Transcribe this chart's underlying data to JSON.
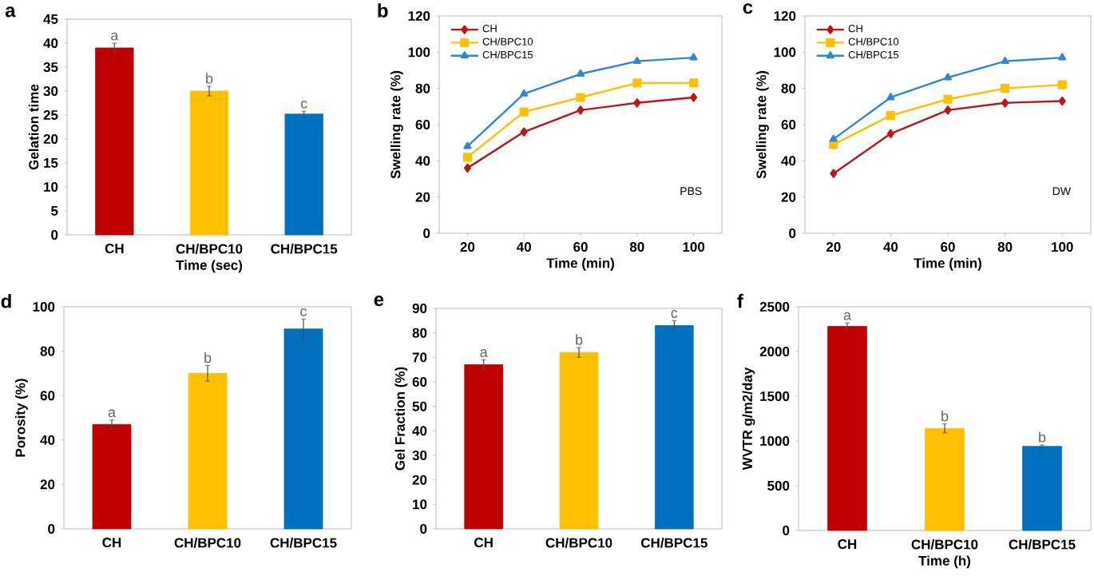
{
  "chart_data": [
    {
      "type": "bar",
      "title": "a",
      "xlabel": "Time (sec)",
      "ylabel": "Gelation time",
      "categories": [
        "CH",
        "CH/BPC10",
        "CH/BPC15"
      ],
      "values": [
        39,
        30,
        25.2
      ],
      "errors": [
        1,
        1,
        0.6
      ],
      "colors": [
        "#c00000",
        "#ffc000",
        "#0070c0"
      ],
      "ylim": [
        0,
        45
      ],
      "yticks": [
        0,
        5,
        10,
        15,
        20,
        25,
        30,
        35,
        40,
        45
      ],
      "legend": false,
      "annotations": [
        {
          "text": "a",
          "x": "CH",
          "y": 39
        },
        {
          "text": "b",
          "x": "CH/BPC10",
          "y": 30
        },
        {
          "text": "c",
          "x": "CH/BPC15",
          "y": 25.2
        }
      ]
    },
    {
      "type": "line",
      "title": "b",
      "xlabel": "Time (min)",
      "ylabel": "Swelling rate  (%)",
      "x": [
        20,
        40,
        60,
        80,
        100
      ],
      "xlim": [
        10,
        110
      ],
      "xticks": [
        20,
        40,
        60,
        80,
        100
      ],
      "ylim": [
        0,
        120
      ],
      "yticks": [
        0,
        20,
        40,
        60,
        80,
        100,
        120
      ],
      "legend": "top left",
      "line_style": "solid",
      "annotations": [
        "PBS"
      ],
      "series": [
        {
          "name": "CH",
          "color": "#c0141c",
          "marker": "diamond",
          "values": [
            36,
            56,
            68,
            72,
            75
          ]
        },
        {
          "name": "CH/BPC10",
          "color": "#ffc000",
          "marker": "square",
          "values": [
            42,
            67,
            75,
            83,
            83
          ]
        },
        {
          "name": "CH/BPC15",
          "color": "#2e86d6",
          "marker": "triangle",
          "values": [
            48,
            77,
            88,
            95,
            97
          ]
        }
      ]
    },
    {
      "type": "line",
      "title": "c",
      "xlabel": "Time (min)",
      "ylabel": "Swelling rate (%)",
      "x": [
        20,
        40,
        60,
        80,
        100
      ],
      "xlim": [
        10,
        110
      ],
      "xticks": [
        20,
        40,
        60,
        80,
        100
      ],
      "ylim": [
        0,
        120
      ],
      "yticks": [
        0,
        20,
        40,
        60,
        80,
        100,
        120
      ],
      "legend": "top left",
      "line_style": "solid",
      "annotations": [
        "DW"
      ],
      "series": [
        {
          "name": "CH",
          "color": "#c0141c",
          "marker": "diamond",
          "values": [
            33,
            55,
            68,
            72,
            73
          ]
        },
        {
          "name": "CH/BPC10",
          "color": "#ffc000",
          "marker": "square",
          "values": [
            49,
            65,
            74,
            80,
            82
          ]
        },
        {
          "name": "CH/BPC15",
          "color": "#2e86d6",
          "marker": "triangle",
          "values": [
            52,
            75,
            86,
            95,
            97
          ]
        }
      ]
    },
    {
      "type": "bar",
      "title": "d",
      "ylabel": "Porosity (%)",
      "categories": [
        "CH",
        "CH/BPC10",
        "CH/BPC15"
      ],
      "values": [
        47,
        70,
        90
      ],
      "errors": [
        2,
        3.5,
        4.5
      ],
      "colors": [
        "#c00000",
        "#ffc000",
        "#0070c0"
      ],
      "ylim": [
        0,
        100
      ],
      "yticks": [
        0,
        20,
        40,
        60,
        80,
        100
      ],
      "legend": false,
      "annotations": [
        {
          "text": "a",
          "x": "CH",
          "y": 47
        },
        {
          "text": "b",
          "x": "CH/BPC10",
          "y": 70
        },
        {
          "text": "c",
          "x": "CH/BPC15",
          "y": 90
        }
      ]
    },
    {
      "type": "bar",
      "title": "e",
      "ylabel": "Gel Fraction (%)",
      "categories": [
        "CH",
        "CH/BPC10",
        "CH/BPC15"
      ],
      "values": [
        67,
        72,
        83
      ],
      "errors": [
        2,
        2,
        2
      ],
      "colors": [
        "#c00000",
        "#ffc000",
        "#0070c0"
      ],
      "ylim": [
        0,
        90
      ],
      "yticks": [
        0,
        10,
        20,
        30,
        40,
        50,
        60,
        70,
        80,
        90
      ],
      "legend": false,
      "annotations": [
        {
          "text": "a",
          "x": "CH",
          "y": 67
        },
        {
          "text": "b",
          "x": "CH/BPC10",
          "y": 72
        },
        {
          "text": "c",
          "x": "CH/BPC15",
          "y": 83
        }
      ]
    },
    {
      "type": "bar",
      "title": "f",
      "xlabel": "Time (h)",
      "ylabel": "WVTR g/m2/day",
      "categories": [
        "CH",
        "CH/BPC10",
        "CH/BPC15"
      ],
      "values": [
        2280,
        1140,
        940
      ],
      "errors": [
        40,
        50,
        15
      ],
      "colors": [
        "#c00000",
        "#ffc000",
        "#0070c0"
      ],
      "ylim": [
        0,
        2500
      ],
      "yticks": [
        0,
        500,
        1000,
        1500,
        2000,
        2500
      ],
      "legend": false,
      "annotations": [
        {
          "text": "a",
          "x": "CH",
          "y": 2280
        },
        {
          "text": "b",
          "x": "CH/BPC10",
          "y": 1140
        },
        {
          "text": "b",
          "x": "CH/BPC15",
          "y": 940
        }
      ]
    }
  ]
}
